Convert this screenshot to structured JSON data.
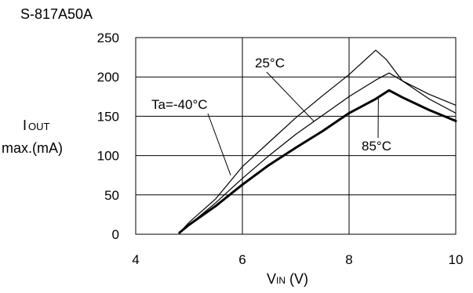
{
  "chart_data": {
    "type": "line",
    "title": "S-817A50A",
    "xlabel_main": "V",
    "xlabel_sub": "IN",
    "xlabel_unit": " (V)",
    "ylabel_line1_main": "I",
    "ylabel_line1_sub": "OUT",
    "ylabel_line2": "max.(mA)",
    "xlim": [
      4,
      10
    ],
    "ylim": [
      0,
      250
    ],
    "x_ticks": [
      4,
      6,
      8,
      10
    ],
    "y_ticks": [
      0,
      50,
      100,
      150,
      200,
      250
    ],
    "x_tick_labels": [
      "4",
      "6",
      "8",
      "10"
    ],
    "y_tick_labels": [
      "0",
      "50",
      "100",
      "150",
      "200",
      "250"
    ],
    "grid": true,
    "series": [
      {
        "name": "Ta=-40°C",
        "points": [
          [
            4.82,
            2
          ],
          [
            5.0,
            15
          ],
          [
            5.5,
            45
          ],
          [
            6.0,
            86
          ],
          [
            6.5,
            117
          ],
          [
            7.0,
            148
          ],
          [
            7.5,
            176
          ],
          [
            8.0,
            203
          ],
          [
            8.5,
            234
          ],
          [
            8.7,
            222
          ],
          [
            9.0,
            195
          ],
          [
            9.5,
            178
          ],
          [
            10.0,
            164
          ]
        ]
      },
      {
        "name": "25°C",
        "points": [
          [
            4.82,
            2
          ],
          [
            5.0,
            12
          ],
          [
            5.5,
            40
          ],
          [
            6.0,
            71
          ],
          [
            6.5,
            100
          ],
          [
            7.0,
            127
          ],
          [
            7.5,
            151
          ],
          [
            8.0,
            175
          ],
          [
            8.5,
            196
          ],
          [
            8.75,
            205
          ],
          [
            9.0,
            195
          ],
          [
            9.5,
            172
          ],
          [
            10.0,
            154
          ]
        ]
      },
      {
        "name": "85°C",
        "points": [
          [
            4.82,
            2
          ],
          [
            5.0,
            12
          ],
          [
            5.5,
            36
          ],
          [
            6.0,
            63
          ],
          [
            6.5,
            88
          ],
          [
            7.0,
            110
          ],
          [
            7.5,
            131
          ],
          [
            8.0,
            154
          ],
          [
            8.5,
            172
          ],
          [
            8.75,
            183
          ],
          [
            9.0,
            174
          ],
          [
            9.5,
            158
          ],
          [
            10.0,
            144
          ]
        ]
      }
    ],
    "annotations": [
      {
        "text": "Ta=-40°C",
        "series": "Ta=-40°C"
      },
      {
        "text": "25°C",
        "series": "25°C"
      },
      {
        "text": "85°C",
        "series": "85°C"
      }
    ]
  }
}
